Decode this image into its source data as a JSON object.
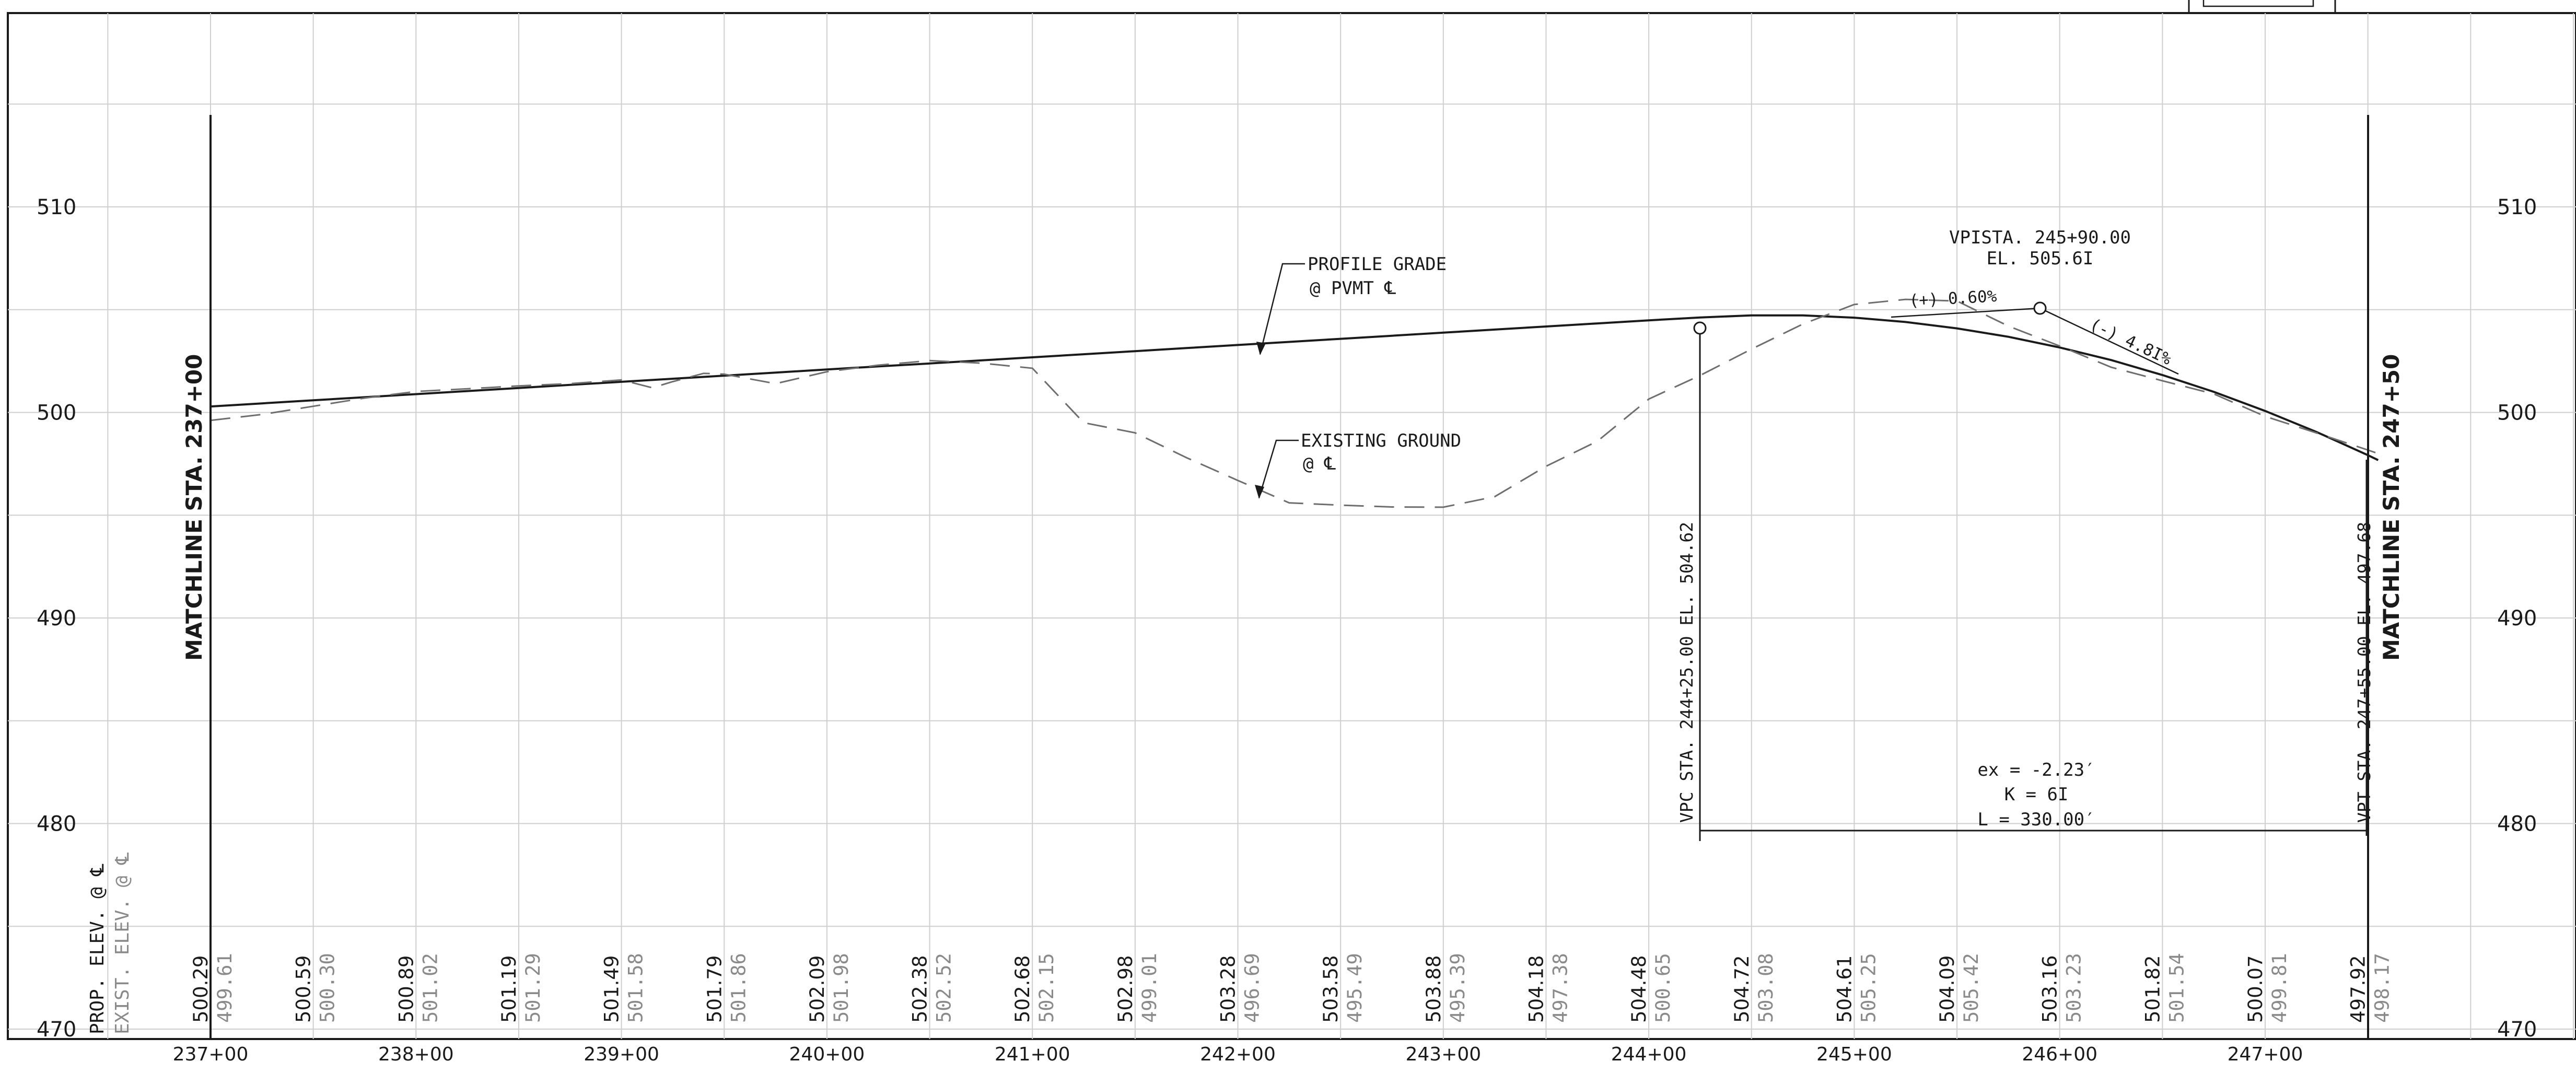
{
  "profile": {
    "left_elevation_labels": [
      "510",
      "500",
      "490",
      "480",
      "470"
    ],
    "right_elevation_labels": [
      "510",
      "500",
      "490",
      "480",
      "470"
    ],
    "stations": [
      "237+00",
      "238+00",
      "239+00",
      "240+00",
      "241+00",
      "242+00",
      "243+00",
      "244+00",
      "245+00",
      "246+00",
      "247+00"
    ],
    "elevation_columns": [
      {
        "prop": "500.29",
        "exist": "499.61"
      },
      {
        "prop": "500.59",
        "exist": "500.30"
      },
      {
        "prop": "500.89",
        "exist": "501.02"
      },
      {
        "prop": "501.19",
        "exist": "501.29"
      },
      {
        "prop": "501.49",
        "exist": "501.58"
      },
      {
        "prop": "501.79",
        "exist": "501.86"
      },
      {
        "prop": "502.09",
        "exist": "501.98"
      },
      {
        "prop": "502.38",
        "exist": "502.52"
      },
      {
        "prop": "502.68",
        "exist": "502.15"
      },
      {
        "prop": "502.98",
        "exist": "499.01"
      },
      {
        "prop": "503.28",
        "exist": "496.69"
      },
      {
        "prop": "503.58",
        "exist": "495.49"
      },
      {
        "prop": "503.88",
        "exist": "495.39"
      },
      {
        "prop": "504.18",
        "exist": "497.38"
      },
      {
        "prop": "504.48",
        "exist": "500.65"
      },
      {
        "prop": "504.72",
        "exist": "503.08"
      },
      {
        "prop": "504.61",
        "exist": "505.25"
      },
      {
        "prop": "504.09",
        "exist": "505.42"
      },
      {
        "prop": "503.16",
        "exist": "503.23"
      },
      {
        "prop": "501.82",
        "exist": "501.54"
      },
      {
        "prop": "500.07",
        "exist": "499.81"
      },
      {
        "prop": "497.92",
        "exist": "498.17"
      }
    ],
    "prop_elev_label": "PROP. ELEV. @ ℄",
    "exist_elev_label": "EXIST. ELEV. @ ℄",
    "matchline_left": "MATCHLINE STA. 237+00",
    "matchline_right": "MATCHLINE STA. 247+50",
    "profile_grade_line1": "PROFILE GRADE",
    "profile_grade_line2": "@ PVMT ℄",
    "existing_ground_line1": "EXISTING GROUND",
    "existing_ground_line2": "@ ℄",
    "vpi_station": "VPISTA. 245+90.00",
    "vpi_elevation": "EL. 505.6I",
    "grade_in": "(+) 0.60%",
    "grade_out": "(-) 4.8I%",
    "vpc_label": "VPC STA. 244+25.00  EL. 504.62",
    "vpt_label": "VPT STA. 247+55.00  EL. 497.68",
    "curve_ex": "ex = -2.23′",
    "curve_k": "K = 6I",
    "curve_l": "L = 330.00′",
    "colors": {
      "line": "#1a1a1a",
      "grid": "#cfcfcf",
      "existing": "#6e6e6e",
      "gray_text": "#8a8a8a"
    }
  },
  "chart_data": {
    "type": "line",
    "title": "",
    "xlabel": "",
    "ylabel": "",
    "xlim": [
      236.27,
      248.54
    ],
    "ylim": [
      470,
      515
    ],
    "grid": true,
    "series": [
      {
        "x": [
          237.0,
          237.25,
          237.5,
          237.75,
          238.0,
          238.25,
          238.5,
          238.75,
          239.0,
          239.25,
          239.5,
          239.75,
          240.0,
          240.25,
          240.5,
          240.75,
          241.0,
          241.25,
          241.5,
          241.75,
          242.0,
          242.25,
          242.5,
          242.75,
          243.0,
          243.25,
          243.5,
          243.75,
          244.0,
          244.25,
          244.25,
          244.5,
          244.75,
          245.0,
          245.25,
          245.5,
          245.75,
          246.0,
          246.25,
          246.5,
          246.75,
          247.0,
          247.25,
          247.5,
          247.55
        ],
        "y": [
          500.29,
          500.44,
          500.59,
          500.74,
          500.89,
          501.04,
          501.19,
          501.34,
          501.49,
          501.64,
          501.79,
          501.94,
          502.09,
          502.24,
          502.38,
          502.53,
          502.68,
          502.83,
          502.98,
          503.13,
          503.28,
          503.43,
          503.58,
          503.73,
          503.88,
          504.03,
          504.18,
          504.33,
          504.48,
          504.62,
          504.62,
          504.72,
          504.72,
          504.61,
          504.4,
          504.09,
          503.68,
          503.16,
          502.55,
          501.82,
          501.0,
          500.07,
          499.05,
          497.92,
          497.68
        ]
      },
      {
        "x": [
          237.0,
          237.25,
          237.5,
          237.75,
          238.0,
          238.25,
          238.5,
          238.75,
          239.0,
          239.15,
          239.25,
          239.4,
          239.5,
          239.75,
          240.0,
          240.25,
          240.5,
          240.75,
          241.0,
          241.25,
          241.5,
          241.75,
          242.0,
          242.25,
          242.5,
          242.75,
          243.0,
          243.25,
          243.5,
          243.75,
          244.0,
          244.25,
          244.5,
          244.75,
          245.0,
          245.25,
          245.5,
          245.75,
          246.0,
          246.25,
          246.5,
          246.75,
          247.0,
          247.25,
          247.5,
          247.55
        ],
        "y": [
          499.61,
          499.9,
          500.3,
          500.7,
          501.02,
          501.15,
          501.29,
          501.4,
          501.58,
          501.2,
          501.5,
          501.9,
          501.86,
          501.4,
          501.98,
          502.3,
          502.52,
          502.4,
          502.15,
          499.5,
          499.01,
          497.8,
          496.69,
          495.6,
          495.49,
          495.4,
          495.39,
          495.9,
          497.38,
          498.6,
          500.65,
          501.8,
          503.08,
          504.3,
          505.25,
          505.5,
          505.42,
          504.2,
          503.23,
          502.2,
          501.54,
          500.9,
          499.81,
          499.0,
          498.17,
          498.0
        ]
      }
    ]
  }
}
